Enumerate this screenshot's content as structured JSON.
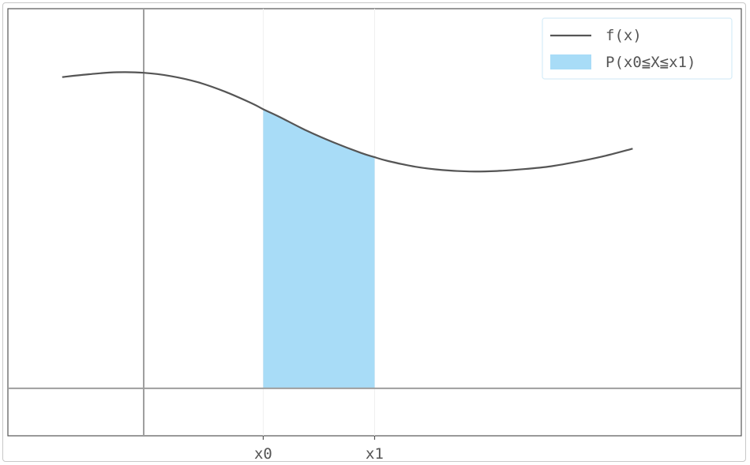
{
  "chart_data": {
    "type": "area",
    "title": "",
    "xlabel": "",
    "ylabel": "",
    "xlim": [
      -2.5,
      11
    ],
    "ylim": [
      -0.1,
      0.8
    ],
    "grid": false,
    "legend_position": "top-right",
    "x_ticks": [
      {
        "value": 2.2,
        "label": "x0"
      },
      {
        "value": 4.25,
        "label": "x1"
      }
    ],
    "series": [
      {
        "name": "f(x)",
        "kind": "line",
        "color": "#555555",
        "x": [
          -1.5,
          -1.0,
          -0.5,
          0.0,
          0.5,
          1.0,
          1.5,
          2.0,
          2.2,
          2.5,
          3.0,
          3.5,
          4.0,
          4.25,
          4.5,
          5.0,
          5.5,
          6.0,
          6.5,
          7.0,
          7.5,
          8.0,
          8.5,
          9.0
        ],
        "y": [
          0.656,
          0.662,
          0.666,
          0.665,
          0.658,
          0.645,
          0.625,
          0.6,
          0.588,
          0.572,
          0.543,
          0.518,
          0.496,
          0.487,
          0.479,
          0.467,
          0.46,
          0.457,
          0.458,
          0.462,
          0.468,
          0.478,
          0.49,
          0.505
        ]
      },
      {
        "name": "P(x0≦X≦x1)",
        "kind": "area",
        "color": "#a8dcf7",
        "x_from": 2.2,
        "x_to": 4.25
      }
    ],
    "reference_lines": [
      {
        "axis": "x",
        "value": 0
      },
      {
        "axis": "y",
        "value": 0
      }
    ]
  }
}
